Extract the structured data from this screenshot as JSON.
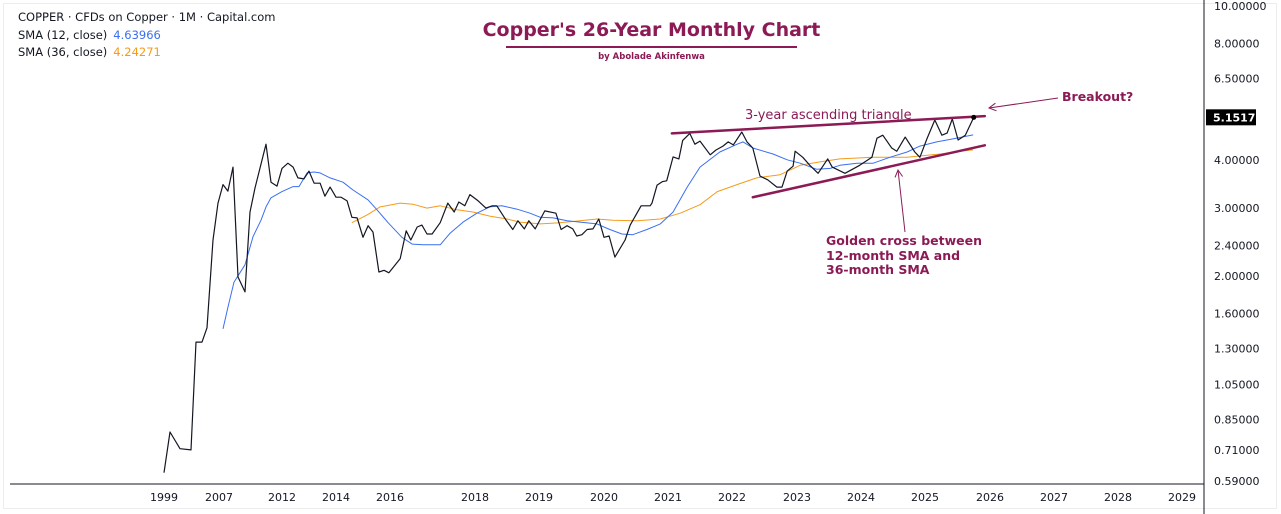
{
  "legend": {
    "symbol_line": "COPPER · CFDs on Copper · 1M · Capital.com",
    "sma12_label": "SMA (12, close)",
    "sma12_value": "4.63966",
    "sma36_label": "SMA (36, close)",
    "sma36_value": "4.24271"
  },
  "colors": {
    "price": "#131722",
    "sma12": "#3a6ff2",
    "sma36": "#f59b1b",
    "annotation": "#8b1a55",
    "last_price_bg": "#000000"
  },
  "chart_data": {
    "type": "line",
    "title": "Copper's 26-Year Monthly Chart",
    "subtitle": "by Abolade Akinfenwa",
    "y_scale": "log",
    "ylim": [
      0.59,
      10
    ],
    "y_ticks": [
      "10.00000",
      "8.00000",
      "6.50000",
      "4.00000",
      "3.00000",
      "2.40000",
      "2.00000",
      "1.60000",
      "1.30000",
      "1.05000",
      "0.85000",
      "0.71000",
      "0.59000"
    ],
    "x_ticks": [
      "1999",
      "2007",
      "2012",
      "2014",
      "2016",
      "2018",
      "2019",
      "2020",
      "2021",
      "2022",
      "2023",
      "2024",
      "2025",
      "2026",
      "2027",
      "2028",
      "2029"
    ],
    "last_price": "5.15171",
    "grid": false,
    "series": [
      {
        "key": "price",
        "values": [
          [
            1999.0,
            0.62
          ],
          [
            1999.87,
            0.79
          ],
          [
            2001.33,
            0.715
          ],
          [
            2002.93,
            0.71
          ],
          [
            2003.66,
            1.35
          ],
          [
            2004.53,
            1.35
          ],
          [
            2005.26,
            1.47
          ],
          [
            2006.13,
            2.48
          ],
          [
            2006.85,
            3.09
          ],
          [
            2007.32,
            3.45
          ],
          [
            2007.71,
            3.32
          ],
          [
            2008.11,
            3.83
          ],
          [
            2008.51,
            1.99
          ],
          [
            2009.06,
            1.82
          ],
          [
            2009.46,
            2.93
          ],
          [
            2009.86,
            3.38
          ],
          [
            2010.73,
            4.39
          ],
          [
            2011.13,
            3.5
          ],
          [
            2011.6,
            3.42
          ],
          [
            2012.0,
            3.8
          ],
          [
            2012.22,
            3.92
          ],
          [
            2012.41,
            3.83
          ],
          [
            2012.59,
            3.59
          ],
          [
            2012.81,
            3.57
          ],
          [
            2013.0,
            3.74
          ],
          [
            2013.19,
            3.48
          ],
          [
            2013.41,
            3.48
          ],
          [
            2013.59,
            3.22
          ],
          [
            2013.78,
            3.4
          ],
          [
            2014.0,
            3.2
          ],
          [
            2014.19,
            3.2
          ],
          [
            2014.41,
            3.13
          ],
          [
            2014.59,
            2.84
          ],
          [
            2014.78,
            2.83
          ],
          [
            2015.0,
            2.52
          ],
          [
            2015.19,
            2.7
          ],
          [
            2015.37,
            2.6
          ],
          [
            2015.59,
            2.05
          ],
          [
            2015.78,
            2.07
          ],
          [
            2015.96,
            2.04
          ],
          [
            2016.24,
            2.22
          ],
          [
            2016.38,
            2.62
          ],
          [
            2016.49,
            2.48
          ],
          [
            2016.64,
            2.68
          ],
          [
            2016.75,
            2.71
          ],
          [
            2016.87,
            2.57
          ],
          [
            2016.99,
            2.57
          ],
          [
            2017.18,
            2.75
          ],
          [
            2017.36,
            3.09
          ],
          [
            2017.51,
            2.93
          ],
          [
            2017.62,
            3.11
          ],
          [
            2017.76,
            3.04
          ],
          [
            2017.88,
            3.25
          ],
          [
            2018.05,
            3.13
          ],
          [
            2018.17,
            3.0
          ],
          [
            2018.27,
            3.04
          ],
          [
            2018.34,
            3.04
          ],
          [
            2018.48,
            2.8
          ],
          [
            2018.59,
            2.64
          ],
          [
            2018.67,
            2.78
          ],
          [
            2018.77,
            2.65
          ],
          [
            2018.84,
            2.78
          ],
          [
            2018.94,
            2.65
          ],
          [
            2019.09,
            2.95
          ],
          [
            2019.26,
            2.91
          ],
          [
            2019.34,
            2.64
          ],
          [
            2019.43,
            2.7
          ],
          [
            2019.52,
            2.65
          ],
          [
            2019.58,
            2.54
          ],
          [
            2019.66,
            2.56
          ],
          [
            2019.74,
            2.64
          ],
          [
            2019.83,
            2.65
          ],
          [
            2019.92,
            2.81
          ],
          [
            2020.0,
            2.52
          ],
          [
            2020.08,
            2.54
          ],
          [
            2020.17,
            2.24
          ],
          [
            2020.33,
            2.48
          ],
          [
            2020.41,
            2.71
          ],
          [
            2020.58,
            3.04
          ],
          [
            2020.72,
            3.04
          ],
          [
            2020.75,
            3.09
          ],
          [
            2020.83,
            3.44
          ],
          [
            2020.91,
            3.51
          ],
          [
            2020.98,
            3.53
          ],
          [
            2021.08,
            4.07
          ],
          [
            2021.17,
            4.02
          ],
          [
            2021.23,
            4.49
          ],
          [
            2021.34,
            4.68
          ],
          [
            2021.42,
            4.39
          ],
          [
            2021.5,
            4.47
          ],
          [
            2021.66,
            4.12
          ],
          [
            2021.75,
            4.24
          ],
          [
            2021.86,
            4.34
          ],
          [
            2021.94,
            4.45
          ],
          [
            2022.02,
            4.37
          ],
          [
            2022.15,
            4.72
          ],
          [
            2022.23,
            4.45
          ],
          [
            2022.32,
            4.29
          ],
          [
            2022.43,
            3.63
          ],
          [
            2022.55,
            3.55
          ],
          [
            2022.69,
            3.4
          ],
          [
            2022.77,
            3.4
          ],
          [
            2022.85,
            3.74
          ],
          [
            2022.94,
            3.85
          ],
          [
            2022.97,
            4.21
          ],
          [
            2023.09,
            4.06
          ],
          [
            2023.2,
            3.87
          ],
          [
            2023.33,
            3.69
          ],
          [
            2023.48,
            4.02
          ],
          [
            2023.55,
            3.83
          ],
          [
            2023.75,
            3.69
          ],
          [
            2023.98,
            3.87
          ],
          [
            2024.17,
            4.06
          ],
          [
            2024.25,
            4.55
          ],
          [
            2024.34,
            4.63
          ],
          [
            2024.48,
            4.29
          ],
          [
            2024.56,
            4.21
          ],
          [
            2024.69,
            4.58
          ],
          [
            2024.84,
            4.19
          ],
          [
            2024.92,
            4.06
          ],
          [
            2025.03,
            4.53
          ],
          [
            2025.15,
            5.07
          ],
          [
            2025.26,
            4.63
          ],
          [
            2025.34,
            4.69
          ],
          [
            2025.42,
            5.1
          ],
          [
            2025.51,
            4.5
          ],
          [
            2025.62,
            4.63
          ],
          [
            2025.75,
            5.15171
          ]
        ]
      },
      {
        "key": "sma12",
        "name": "SMA (12, close)",
        "values": [
          [
            2007.32,
            1.46
          ],
          [
            2007.71,
            1.66
          ],
          [
            2008.19,
            1.93
          ],
          [
            2009.06,
            2.14
          ],
          [
            2009.7,
            2.53
          ],
          [
            2010.33,
            2.79
          ],
          [
            2010.73,
            3.02
          ],
          [
            2011.13,
            3.19
          ],
          [
            2012.0,
            3.31
          ],
          [
            2012.41,
            3.41
          ],
          [
            2012.63,
            3.41
          ],
          [
            2012.93,
            3.7
          ],
          [
            2013.19,
            3.72
          ],
          [
            2013.41,
            3.7
          ],
          [
            2013.78,
            3.59
          ],
          [
            2014.26,
            3.5
          ],
          [
            2014.63,
            3.34
          ],
          [
            2015.19,
            3.15
          ],
          [
            2015.52,
            2.97
          ],
          [
            2015.93,
            2.75
          ],
          [
            2016.28,
            2.52
          ],
          [
            2016.52,
            2.42
          ],
          [
            2016.78,
            2.41
          ],
          [
            2017.18,
            2.41
          ],
          [
            2017.41,
            2.58
          ],
          [
            2017.72,
            2.76
          ],
          [
            2018.03,
            2.91
          ],
          [
            2018.23,
            3.02
          ],
          [
            2018.42,
            3.04
          ],
          [
            2018.66,
            2.98
          ],
          [
            2018.86,
            2.91
          ],
          [
            2019.02,
            2.84
          ],
          [
            2019.22,
            2.83
          ],
          [
            2019.43,
            2.78
          ],
          [
            2019.63,
            2.76
          ],
          [
            2019.89,
            2.73
          ],
          [
            2020.09,
            2.64
          ],
          [
            2020.28,
            2.57
          ],
          [
            2020.45,
            2.56
          ],
          [
            2020.67,
            2.64
          ],
          [
            2020.88,
            2.73
          ],
          [
            2021.08,
            2.93
          ],
          [
            2021.3,
            3.4
          ],
          [
            2021.5,
            3.83
          ],
          [
            2021.81,
            4.19
          ],
          [
            2022.08,
            4.39
          ],
          [
            2022.17,
            4.45
          ],
          [
            2022.32,
            4.29
          ],
          [
            2022.63,
            4.14
          ],
          [
            2022.85,
            4.0
          ],
          [
            2023.05,
            3.92
          ],
          [
            2023.31,
            3.78
          ],
          [
            2023.52,
            3.8
          ],
          [
            2023.67,
            3.87
          ],
          [
            2023.94,
            3.92
          ],
          [
            2024.19,
            3.92
          ],
          [
            2024.45,
            4.06
          ],
          [
            2024.72,
            4.19
          ],
          [
            2024.92,
            4.34
          ],
          [
            2025.18,
            4.45
          ],
          [
            2025.43,
            4.53
          ],
          [
            2025.74,
            4.63966
          ]
        ]
      },
      {
        "key": "sma36",
        "name": "SMA (36, close)",
        "values": [
          [
            2014.59,
            2.75
          ],
          [
            2015.15,
            2.88
          ],
          [
            2015.63,
            3.02
          ],
          [
            2016.24,
            3.09
          ],
          [
            2016.54,
            3.07
          ],
          [
            2016.87,
            3.0
          ],
          [
            2017.18,
            3.04
          ],
          [
            2017.58,
            2.97
          ],
          [
            2017.95,
            2.93
          ],
          [
            2018.23,
            2.86
          ],
          [
            2018.5,
            2.81
          ],
          [
            2018.7,
            2.76
          ],
          [
            2019.02,
            2.73
          ],
          [
            2019.32,
            2.75
          ],
          [
            2019.63,
            2.78
          ],
          [
            2019.89,
            2.81
          ],
          [
            2020.14,
            2.79
          ],
          [
            2020.52,
            2.78
          ],
          [
            2020.88,
            2.81
          ],
          [
            2021.19,
            2.91
          ],
          [
            2021.5,
            3.06
          ],
          [
            2021.77,
            3.31
          ],
          [
            2022.12,
            3.47
          ],
          [
            2022.38,
            3.59
          ],
          [
            2022.74,
            3.66
          ],
          [
            2023.05,
            3.87
          ],
          [
            2023.36,
            3.95
          ],
          [
            2023.67,
            4.02
          ],
          [
            2024.19,
            4.06
          ],
          [
            2024.72,
            4.06
          ],
          [
            2025.23,
            4.14
          ],
          [
            2025.54,
            4.21
          ],
          [
            2025.74,
            4.24271
          ]
        ]
      }
    ],
    "trendlines": [
      {
        "key": "resistance",
        "from": [
          2021.06,
          4.68
        ],
        "to": [
          2025.92,
          5.19
        ]
      },
      {
        "key": "support",
        "from": [
          2022.32,
          3.2
        ],
        "to": [
          2025.92,
          4.36
        ]
      }
    ],
    "annotations": {
      "triangle": "3-year ascending triangle",
      "golden_cross": [
        "Golden cross between",
        "12-month SMA and",
        "36-month SMA"
      ],
      "breakout": "Breakout?"
    }
  }
}
